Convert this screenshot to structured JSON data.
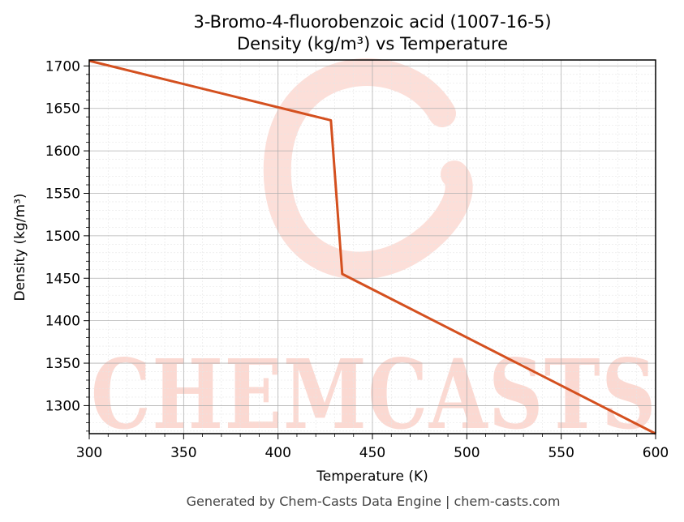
{
  "chart_data": {
    "type": "line",
    "title": "3-Bromo-4-fluorobenzoic acid (1007-16-5)",
    "subtitle": "Density (kg/m³) vs Temperature",
    "xlabel": "Temperature (K)",
    "ylabel": "Density (kg/m³)",
    "xlim": [
      300,
      600
    ],
    "ylim": [
      1267,
      1707
    ],
    "x_ticks": [
      300,
      350,
      400,
      450,
      500,
      550,
      600
    ],
    "y_ticks": [
      1300,
      1350,
      1400,
      1450,
      1500,
      1550,
      1600,
      1650,
      1700
    ],
    "grid": true,
    "series": [
      {
        "color": "#d4501f",
        "x": [
          300,
          428,
          434,
          600
        ],
        "y": [
          1706,
          1636,
          1455,
          1267
        ]
      }
    ]
  },
  "watermark": {
    "text": "CHEMCASTS",
    "color": "#fbd9d2"
  },
  "footer": "Generated by Chem-Casts Data Engine | chem-casts.com"
}
